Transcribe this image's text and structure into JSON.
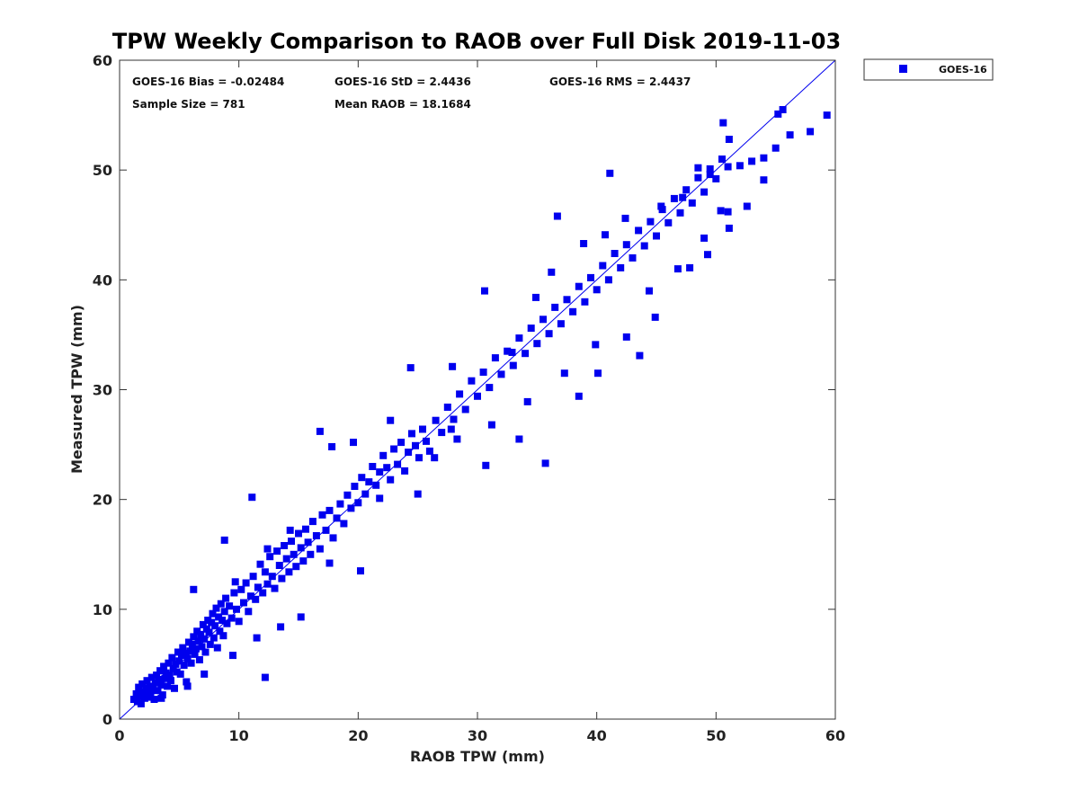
{
  "chart_data": {
    "type": "scatter",
    "title": "TPW Weekly Comparison to RAOB over Full Disk 2019-11-03",
    "xlabel": "RAOB TPW (mm)",
    "ylabel": "Measured TPW (mm)",
    "xlim": [
      0,
      60
    ],
    "ylim": [
      0,
      60
    ],
    "xticks": [
      "0",
      "10",
      "20",
      "30",
      "40",
      "50",
      "60"
    ],
    "yticks": [
      "0",
      "10",
      "20",
      "30",
      "40",
      "50",
      "60"
    ],
    "grid": false,
    "legend": {
      "position": "outside-top-right",
      "entries": [
        "GOES-16"
      ]
    },
    "reference_line": {
      "label": "1:1",
      "from": [
        0,
        0
      ],
      "to": [
        60,
        60
      ]
    },
    "stats": {
      "bias": "GOES-16 Bias = -0.02484",
      "std": "GOES-16 StD = 2.4436",
      "rms": "GOES-16 RMS = 2.4437",
      "sample_size": "Sample Size = 781",
      "mean_raob": "Mean RAOB = 18.1684"
    },
    "marker_color": "#0000ee",
    "series": [
      {
        "name": "GOES-16",
        "points": [
          [
            1.2,
            1.8
          ],
          [
            1.4,
            2.3
          ],
          [
            1.5,
            1.6
          ],
          [
            1.6,
            2.9
          ],
          [
            1.7,
            2.1
          ],
          [
            1.8,
            1.4
          ],
          [
            1.9,
            3.2
          ],
          [
            2.0,
            2.5
          ],
          [
            2.1,
            1.9
          ],
          [
            2.2,
            2.8
          ],
          [
            2.3,
            3.5
          ],
          [
            2.4,
            2.0
          ],
          [
            2.5,
            3.0
          ],
          [
            2.6,
            2.4
          ],
          [
            2.7,
            3.8
          ],
          [
            2.8,
            2.7
          ],
          [
            2.9,
            1.8
          ],
          [
            3.0,
            3.3
          ],
          [
            3.1,
            4.0
          ],
          [
            3.2,
            2.6
          ],
          [
            3.3,
            3.6
          ],
          [
            3.4,
            4.4
          ],
          [
            3.5,
            3.1
          ],
          [
            3.6,
            2.2
          ],
          [
            3.7,
            4.8
          ],
          [
            3.8,
            3.7
          ],
          [
            3.9,
            4.2
          ],
          [
            4.0,
            3.0
          ],
          [
            4.1,
            5.1
          ],
          [
            4.2,
            4.0
          ],
          [
            4.3,
            3.5
          ],
          [
            4.4,
            5.6
          ],
          [
            4.5,
            4.6
          ],
          [
            4.6,
            2.8
          ],
          [
            4.7,
            5.0
          ],
          [
            4.8,
            4.3
          ],
          [
            4.9,
            6.1
          ],
          [
            5.0,
            5.3
          ],
          [
            5.1,
            4.1
          ],
          [
            5.2,
            5.8
          ],
          [
            5.3,
            6.5
          ],
          [
            5.4,
            4.9
          ],
          [
            5.5,
            6.0
          ],
          [
            5.6,
            3.4
          ],
          [
            5.7,
            5.5
          ],
          [
            5.8,
            7.0
          ],
          [
            5.9,
            6.2
          ],
          [
            6.0,
            5.1
          ],
          [
            6.1,
            6.8
          ],
          [
            6.2,
            7.5
          ],
          [
            6.3,
            5.9
          ],
          [
            6.4,
            6.4
          ],
          [
            6.5,
            8.0
          ],
          [
            6.6,
            7.1
          ],
          [
            6.7,
            5.4
          ],
          [
            6.8,
            7.7
          ],
          [
            6.9,
            6.6
          ],
          [
            7.0,
            8.6
          ],
          [
            7.1,
            7.3
          ],
          [
            7.2,
            6.1
          ],
          [
            7.3,
            8.2
          ],
          [
            7.4,
            9.0
          ],
          [
            7.5,
            7.9
          ],
          [
            7.6,
            6.8
          ],
          [
            7.7,
            8.8
          ],
          [
            7.8,
            9.6
          ],
          [
            7.9,
            7.4
          ],
          [
            8.0,
            8.5
          ],
          [
            8.1,
            10.1
          ],
          [
            8.2,
            6.5
          ],
          [
            8.3,
            9.3
          ],
          [
            8.4,
            8.0
          ],
          [
            8.5,
            10.5
          ],
          [
            8.6,
            9.0
          ],
          [
            8.7,
            7.6
          ],
          [
            8.8,
            9.8
          ],
          [
            8.9,
            11.0
          ],
          [
            9.0,
            8.7
          ],
          [
            9.2,
            10.3
          ],
          [
            9.4,
            9.2
          ],
          [
            9.6,
            11.5
          ],
          [
            9.8,
            10.0
          ],
          [
            10.0,
            8.9
          ],
          [
            10.2,
            11.8
          ],
          [
            10.4,
            10.6
          ],
          [
            10.6,
            12.4
          ],
          [
            10.8,
            9.8
          ],
          [
            11.0,
            11.2
          ],
          [
            11.2,
            13.0
          ],
          [
            11.4,
            10.9
          ],
          [
            11.6,
            12.0
          ],
          [
            11.8,
            14.1
          ],
          [
            12.0,
            11.5
          ],
          [
            12.2,
            13.4
          ],
          [
            12.4,
            12.3
          ],
          [
            12.6,
            14.8
          ],
          [
            12.8,
            13.0
          ],
          [
            13.0,
            11.9
          ],
          [
            13.2,
            15.3
          ],
          [
            13.4,
            14.0
          ],
          [
            13.6,
            12.8
          ],
          [
            13.8,
            15.8
          ],
          [
            14.0,
            14.6
          ],
          [
            14.2,
            13.4
          ],
          [
            14.4,
            16.2
          ],
          [
            14.6,
            15.0
          ],
          [
            14.8,
            13.9
          ],
          [
            15.0,
            16.9
          ],
          [
            15.2,
            15.6
          ],
          [
            15.4,
            14.4
          ],
          [
            15.6,
            17.3
          ],
          [
            15.8,
            16.1
          ],
          [
            16.0,
            15.0
          ],
          [
            16.2,
            18.0
          ],
          [
            16.5,
            16.7
          ],
          [
            16.8,
            15.5
          ],
          [
            17.0,
            18.6
          ],
          [
            17.3,
            17.2
          ],
          [
            17.6,
            19.0
          ],
          [
            17.9,
            16.5
          ],
          [
            18.2,
            18.3
          ],
          [
            18.5,
            19.6
          ],
          [
            18.8,
            17.8
          ],
          [
            19.1,
            20.4
          ],
          [
            19.4,
            19.2
          ],
          [
            19.7,
            21.2
          ],
          [
            20.0,
            19.7
          ],
          [
            20.3,
            22.0
          ],
          [
            20.6,
            20.5
          ],
          [
            20.9,
            21.6
          ],
          [
            21.2,
            23.0
          ],
          [
            21.5,
            21.3
          ],
          [
            21.8,
            22.5
          ],
          [
            22.1,
            24.0
          ],
          [
            22.4,
            22.9
          ],
          [
            22.7,
            21.8
          ],
          [
            23.0,
            24.6
          ],
          [
            23.3,
            23.2
          ],
          [
            23.6,
            25.2
          ],
          [
            23.9,
            22.6
          ],
          [
            24.2,
            24.3
          ],
          [
            24.5,
            26.0
          ],
          [
            24.8,
            24.9
          ],
          [
            25.1,
            23.8
          ],
          [
            25.4,
            26.4
          ],
          [
            25.7,
            25.3
          ],
          [
            26.0,
            24.4
          ],
          [
            26.5,
            27.2
          ],
          [
            27.0,
            26.1
          ],
          [
            27.5,
            28.4
          ],
          [
            28.0,
            27.3
          ],
          [
            28.5,
            29.6
          ],
          [
            29.0,
            28.2
          ],
          [
            29.5,
            30.8
          ],
          [
            30.0,
            29.4
          ],
          [
            30.5,
            31.6
          ],
          [
            31.0,
            30.2
          ],
          [
            31.5,
            32.9
          ],
          [
            32.0,
            31.4
          ],
          [
            32.5,
            33.5
          ],
          [
            33.0,
            32.2
          ],
          [
            33.5,
            34.7
          ],
          [
            34.0,
            33.3
          ],
          [
            34.5,
            35.6
          ],
          [
            35.0,
            34.2
          ],
          [
            35.5,
            36.4
          ],
          [
            36.0,
            35.1
          ],
          [
            36.5,
            37.5
          ],
          [
            37.0,
            36.0
          ],
          [
            37.5,
            38.2
          ],
          [
            38.0,
            37.1
          ],
          [
            38.5,
            39.4
          ],
          [
            39.0,
            38.0
          ],
          [
            39.5,
            40.2
          ],
          [
            40.0,
            39.1
          ],
          [
            40.5,
            41.3
          ],
          [
            41.0,
            40.0
          ],
          [
            41.5,
            42.4
          ],
          [
            42.0,
            41.1
          ],
          [
            42.5,
            43.2
          ],
          [
            43.0,
            42.0
          ],
          [
            43.5,
            44.5
          ],
          [
            44.0,
            43.1
          ],
          [
            44.5,
            45.3
          ],
          [
            45.0,
            44.0
          ],
          [
            45.5,
            46.4
          ],
          [
            46.0,
            45.2
          ],
          [
            46.5,
            47.4
          ],
          [
            47.0,
            46.1
          ],
          [
            47.5,
            48.2
          ],
          [
            48.0,
            47.0
          ],
          [
            48.5,
            49.3
          ],
          [
            49.0,
            48.0
          ],
          [
            49.5,
            50.1
          ],
          [
            50.0,
            49.2
          ],
          [
            50.5,
            51.0
          ],
          [
            51.0,
            50.3
          ],
          [
            52.0,
            50.4
          ],
          [
            53.0,
            50.8
          ],
          [
            54.0,
            51.1
          ],
          [
            55.0,
            52.0
          ],
          [
            55.2,
            55.1
          ],
          [
            55.6,
            55.5
          ],
          [
            56.2,
            53.2
          ],
          [
            57.9,
            53.5
          ],
          [
            59.3,
            55.0
          ],
          [
            50.6,
            54.3
          ],
          [
            51.1,
            52.8
          ],
          [
            41.1,
            49.7
          ],
          [
            36.7,
            45.8
          ],
          [
            30.6,
            39.0
          ],
          [
            24.4,
            32.0
          ],
          [
            16.8,
            26.2
          ],
          [
            11.1,
            20.2
          ],
          [
            8.8,
            16.3
          ],
          [
            6.2,
            11.8
          ],
          [
            20.2,
            13.5
          ],
          [
            12.2,
            3.8
          ],
          [
            30.7,
            23.1
          ],
          [
            35.7,
            23.3
          ],
          [
            40.1,
            31.5
          ],
          [
            43.6,
            33.1
          ],
          [
            38.5,
            29.4
          ],
          [
            33.5,
            25.5
          ],
          [
            28.3,
            25.5
          ],
          [
            31.2,
            26.8
          ],
          [
            42.5,
            34.8
          ],
          [
            44.9,
            36.6
          ],
          [
            47.8,
            41.1
          ],
          [
            49.3,
            42.3
          ],
          [
            51.1,
            44.7
          ],
          [
            52.6,
            46.7
          ],
          [
            54.0,
            49.1
          ],
          [
            15.2,
            9.3
          ],
          [
            13.5,
            8.4
          ],
          [
            11.5,
            7.4
          ],
          [
            9.5,
            5.8
          ],
          [
            3.5,
            1.9
          ],
          [
            5.7,
            3.0
          ],
          [
            7.1,
            4.1
          ],
          [
            17.6,
            14.2
          ],
          [
            21.8,
            20.1
          ],
          [
            25.0,
            20.5
          ],
          [
            27.8,
            26.4
          ],
          [
            34.2,
            28.9
          ],
          [
            37.3,
            31.5
          ],
          [
            39.9,
            34.1
          ],
          [
            44.4,
            39.0
          ],
          [
            46.8,
            41.0
          ],
          [
            49.0,
            43.8
          ],
          [
            26.4,
            23.8
          ],
          [
            22.7,
            27.2
          ],
          [
            19.6,
            25.2
          ],
          [
            17.8,
            24.8
          ],
          [
            14.3,
            17.2
          ],
          [
            12.4,
            15.5
          ],
          [
            9.7,
            12.5
          ],
          [
            27.9,
            32.1
          ],
          [
            32.9,
            33.4
          ],
          [
            34.9,
            38.4
          ],
          [
            36.2,
            40.7
          ],
          [
            38.9,
            43.3
          ],
          [
            40.7,
            44.1
          ],
          [
            42.4,
            45.6
          ],
          [
            45.4,
            46.7
          ],
          [
            47.2,
            47.5
          ],
          [
            48.5,
            50.2
          ],
          [
            49.5,
            49.6
          ],
          [
            50.4,
            46.3
          ],
          [
            51.0,
            46.2
          ]
        ]
      }
    ]
  }
}
